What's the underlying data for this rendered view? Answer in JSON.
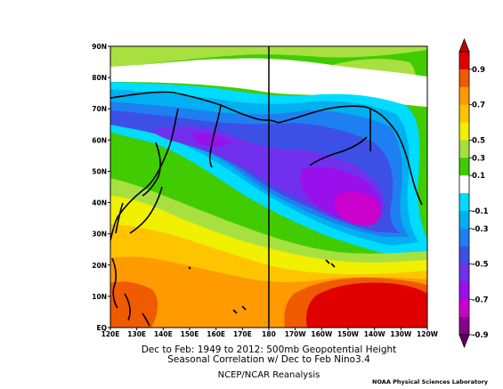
{
  "map": {
    "projection": "equirectangular",
    "lon_range": [
      120,
      240
    ],
    "lat_range": [
      0,
      90
    ],
    "lon_ticks": [
      "120E",
      "130E",
      "140E",
      "150E",
      "160E",
      "170E",
      "180",
      "170W",
      "160W",
      "150W",
      "140W",
      "130W",
      "120W"
    ],
    "lat_ticks": [
      "EQ",
      "10N",
      "20N",
      "30N",
      "40N",
      "50N",
      "60N",
      "70N",
      "80N",
      "90N"
    ],
    "dateline_label": "180"
  },
  "colorbar": {
    "labels": [
      "0.9",
      "0.7",
      "0.5",
      "0.3",
      "0.1",
      "-0.1",
      "-0.3",
      "-0.5",
      "-0.7",
      "-0.9"
    ],
    "colors": [
      "#e00000",
      "#f05a00",
      "#ff9a00",
      "#ffc400",
      "#f0f000",
      "#a8e040",
      "#40cc00",
      "#ffffff",
      "#00dcff",
      "#00b0f0",
      "#1e80f0",
      "#3c50e6",
      "#7030ee",
      "#9a10ec",
      "#cc00cc",
      "#880088"
    ]
  },
  "caption": {
    "line1": "Dec to Feb: 1949 to 2012: 500mb Geopotential Height",
    "line2": "Seasonal Correlation w/ Dec to Feb Nino3.4",
    "line3": "NCEP/NCAR Reanalysis"
  },
  "credit": "NOAA Physical Sciences Laboratory"
}
